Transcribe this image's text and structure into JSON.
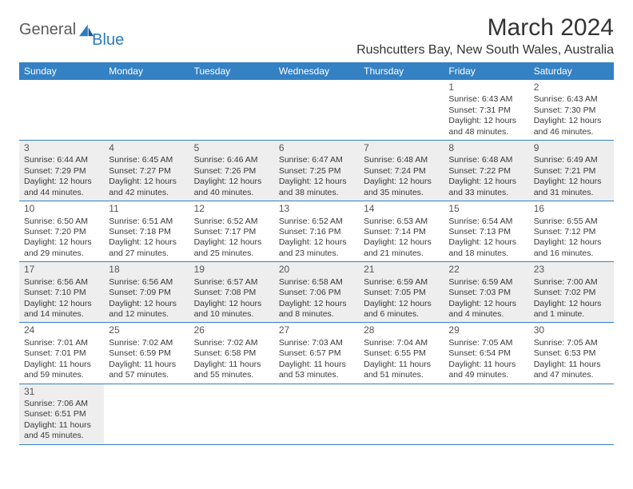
{
  "brand": {
    "part1": "General",
    "part2": "Blue"
  },
  "title": "March 2024",
  "location": "Rushcutters Bay, New South Wales, Australia",
  "colors": {
    "header_bg": "#3481c4",
    "header_fg": "#ffffff",
    "row_alt_bg": "#eeeeee",
    "border": "#3481c4",
    "logo_blue": "#2b7bbf",
    "logo_gray": "#5a5a5a"
  },
  "weekdays": [
    "Sunday",
    "Monday",
    "Tuesday",
    "Wednesday",
    "Thursday",
    "Friday",
    "Saturday"
  ],
  "weeks": [
    [
      null,
      null,
      null,
      null,
      null,
      {
        "n": "1",
        "sr": "6:43 AM",
        "ss": "7:31 PM",
        "dl": "12 hours and 48 minutes."
      },
      {
        "n": "2",
        "sr": "6:43 AM",
        "ss": "7:30 PM",
        "dl": "12 hours and 46 minutes."
      }
    ],
    [
      {
        "n": "3",
        "sr": "6:44 AM",
        "ss": "7:29 PM",
        "dl": "12 hours and 44 minutes."
      },
      {
        "n": "4",
        "sr": "6:45 AM",
        "ss": "7:27 PM",
        "dl": "12 hours and 42 minutes."
      },
      {
        "n": "5",
        "sr": "6:46 AM",
        "ss": "7:26 PM",
        "dl": "12 hours and 40 minutes."
      },
      {
        "n": "6",
        "sr": "6:47 AM",
        "ss": "7:25 PM",
        "dl": "12 hours and 38 minutes."
      },
      {
        "n": "7",
        "sr": "6:48 AM",
        "ss": "7:24 PM",
        "dl": "12 hours and 35 minutes."
      },
      {
        "n": "8",
        "sr": "6:48 AM",
        "ss": "7:22 PM",
        "dl": "12 hours and 33 minutes."
      },
      {
        "n": "9",
        "sr": "6:49 AM",
        "ss": "7:21 PM",
        "dl": "12 hours and 31 minutes."
      }
    ],
    [
      {
        "n": "10",
        "sr": "6:50 AM",
        "ss": "7:20 PM",
        "dl": "12 hours and 29 minutes."
      },
      {
        "n": "11",
        "sr": "6:51 AM",
        "ss": "7:18 PM",
        "dl": "12 hours and 27 minutes."
      },
      {
        "n": "12",
        "sr": "6:52 AM",
        "ss": "7:17 PM",
        "dl": "12 hours and 25 minutes."
      },
      {
        "n": "13",
        "sr": "6:52 AM",
        "ss": "7:16 PM",
        "dl": "12 hours and 23 minutes."
      },
      {
        "n": "14",
        "sr": "6:53 AM",
        "ss": "7:14 PM",
        "dl": "12 hours and 21 minutes."
      },
      {
        "n": "15",
        "sr": "6:54 AM",
        "ss": "7:13 PM",
        "dl": "12 hours and 18 minutes."
      },
      {
        "n": "16",
        "sr": "6:55 AM",
        "ss": "7:12 PM",
        "dl": "12 hours and 16 minutes."
      }
    ],
    [
      {
        "n": "17",
        "sr": "6:56 AM",
        "ss": "7:10 PM",
        "dl": "12 hours and 14 minutes."
      },
      {
        "n": "18",
        "sr": "6:56 AM",
        "ss": "7:09 PM",
        "dl": "12 hours and 12 minutes."
      },
      {
        "n": "19",
        "sr": "6:57 AM",
        "ss": "7:08 PM",
        "dl": "12 hours and 10 minutes."
      },
      {
        "n": "20",
        "sr": "6:58 AM",
        "ss": "7:06 PM",
        "dl": "12 hours and 8 minutes."
      },
      {
        "n": "21",
        "sr": "6:59 AM",
        "ss": "7:05 PM",
        "dl": "12 hours and 6 minutes."
      },
      {
        "n": "22",
        "sr": "6:59 AM",
        "ss": "7:03 PM",
        "dl": "12 hours and 4 minutes."
      },
      {
        "n": "23",
        "sr": "7:00 AM",
        "ss": "7:02 PM",
        "dl": "12 hours and 1 minute."
      }
    ],
    [
      {
        "n": "24",
        "sr": "7:01 AM",
        "ss": "7:01 PM",
        "dl": "11 hours and 59 minutes."
      },
      {
        "n": "25",
        "sr": "7:02 AM",
        "ss": "6:59 PM",
        "dl": "11 hours and 57 minutes."
      },
      {
        "n": "26",
        "sr": "7:02 AM",
        "ss": "6:58 PM",
        "dl": "11 hours and 55 minutes."
      },
      {
        "n": "27",
        "sr": "7:03 AM",
        "ss": "6:57 PM",
        "dl": "11 hours and 53 minutes."
      },
      {
        "n": "28",
        "sr": "7:04 AM",
        "ss": "6:55 PM",
        "dl": "11 hours and 51 minutes."
      },
      {
        "n": "29",
        "sr": "7:05 AM",
        "ss": "6:54 PM",
        "dl": "11 hours and 49 minutes."
      },
      {
        "n": "30",
        "sr": "7:05 AM",
        "ss": "6:53 PM",
        "dl": "11 hours and 47 minutes."
      }
    ],
    [
      {
        "n": "31",
        "sr": "7:06 AM",
        "ss": "6:51 PM",
        "dl": "11 hours and 45 minutes."
      },
      null,
      null,
      null,
      null,
      null,
      null
    ]
  ],
  "labels": {
    "sunrise": "Sunrise:",
    "sunset": "Sunset:",
    "daylight": "Daylight:"
  }
}
